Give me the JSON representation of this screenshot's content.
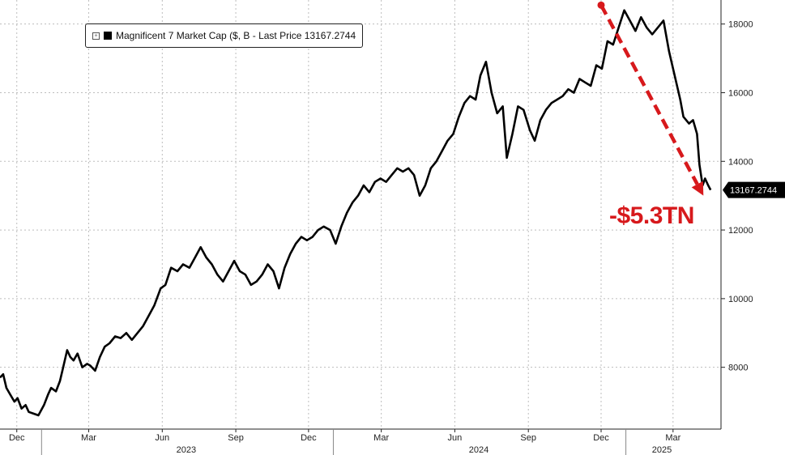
{
  "legend": {
    "toggle": "+",
    "label": "Magnificent 7 Market Cap ($, B - Last Price 13167.2744"
  },
  "annotation": {
    "text": "-$5.3TN",
    "color": "#d7191c"
  },
  "last_price_label": "13167.2744",
  "chart_data": {
    "type": "line",
    "title": "",
    "xlabel": "",
    "ylabel": "",
    "ylim": [
      6200,
      18700
    ],
    "y_ticks": [
      8000,
      10000,
      12000,
      14000,
      16000,
      18000
    ],
    "grid": true,
    "legend_position": "top-left",
    "month_ticks": [
      {
        "label": "Dec",
        "date": "2022-12-01"
      },
      {
        "label": "Mar",
        "date": "2023-03-01"
      },
      {
        "label": "Jun",
        "date": "2023-06-01"
      },
      {
        "label": "Sep",
        "date": "2023-09-01"
      },
      {
        "label": "Dec",
        "date": "2023-12-01"
      },
      {
        "label": "Mar",
        "date": "2024-03-01"
      },
      {
        "label": "Jun",
        "date": "2024-06-01"
      },
      {
        "label": "Sep",
        "date": "2024-09-01"
      },
      {
        "label": "Dec",
        "date": "2024-12-01"
      },
      {
        "label": "Mar",
        "date": "2025-03-01"
      }
    ],
    "year_labels": [
      {
        "label": "2023",
        "date": "2023-07-01"
      },
      {
        "label": "2024",
        "date": "2024-07-01"
      },
      {
        "label": "2025",
        "date": "2025-02-15"
      }
    ],
    "year_dividers": [
      "2023-01-01",
      "2024-01-01",
      "2025-01-01"
    ],
    "x_range": [
      "2022-11-10",
      "2025-04-30"
    ],
    "series": [
      {
        "name": "Magnificent 7 Market Cap ($, B - Last Price 13167.2744",
        "color": "#000000",
        "last_value": 13167.2744,
        "points": [
          [
            "2022-11-10",
            7700
          ],
          [
            "2022-11-14",
            7800
          ],
          [
            "2022-11-18",
            7400
          ],
          [
            "2022-11-23",
            7200
          ],
          [
            "2022-11-28",
            7000
          ],
          [
            "2022-12-02",
            7100
          ],
          [
            "2022-12-07",
            6800
          ],
          [
            "2022-12-12",
            6900
          ],
          [
            "2022-12-16",
            6700
          ],
          [
            "2022-12-22",
            6650
          ],
          [
            "2022-12-28",
            6600
          ],
          [
            "2023-01-04",
            6900
          ],
          [
            "2023-01-09",
            7200
          ],
          [
            "2023-01-13",
            7400
          ],
          [
            "2023-01-19",
            7300
          ],
          [
            "2023-01-24",
            7600
          ],
          [
            "2023-01-27",
            7900
          ],
          [
            "2023-02-02",
            8500
          ],
          [
            "2023-02-06",
            8300
          ],
          [
            "2023-02-10",
            8200
          ],
          [
            "2023-02-15",
            8400
          ],
          [
            "2023-02-21",
            8000
          ],
          [
            "2023-02-27",
            8100
          ],
          [
            "2023-03-03",
            8050
          ],
          [
            "2023-03-09",
            7900
          ],
          [
            "2023-03-15",
            8300
          ],
          [
            "2023-03-21",
            8600
          ],
          [
            "2023-03-27",
            8700
          ],
          [
            "2023-04-03",
            8900
          ],
          [
            "2023-04-10",
            8850
          ],
          [
            "2023-04-17",
            9000
          ],
          [
            "2023-04-24",
            8800
          ],
          [
            "2023-05-01",
            9000
          ],
          [
            "2023-05-08",
            9200
          ],
          [
            "2023-05-15",
            9500
          ],
          [
            "2023-05-22",
            9800
          ],
          [
            "2023-05-30",
            10300
          ],
          [
            "2023-06-05",
            10400
          ],
          [
            "2023-06-12",
            10900
          ],
          [
            "2023-06-20",
            10800
          ],
          [
            "2023-06-27",
            11000
          ],
          [
            "2023-07-05",
            10900
          ],
          [
            "2023-07-12",
            11200
          ],
          [
            "2023-07-19",
            11500
          ],
          [
            "2023-07-26",
            11200
          ],
          [
            "2023-08-02",
            11000
          ],
          [
            "2023-08-09",
            10700
          ],
          [
            "2023-08-16",
            10500
          ],
          [
            "2023-08-23",
            10800
          ],
          [
            "2023-08-30",
            11100
          ],
          [
            "2023-09-06",
            10800
          ],
          [
            "2023-09-13",
            10700
          ],
          [
            "2023-09-20",
            10400
          ],
          [
            "2023-09-27",
            10500
          ],
          [
            "2023-10-04",
            10700
          ],
          [
            "2023-10-11",
            11000
          ],
          [
            "2023-10-18",
            10800
          ],
          [
            "2023-10-25",
            10300
          ],
          [
            "2023-11-01",
            10900
          ],
          [
            "2023-11-08",
            11300
          ],
          [
            "2023-11-15",
            11600
          ],
          [
            "2023-11-22",
            11800
          ],
          [
            "2023-11-29",
            11700
          ],
          [
            "2023-12-06",
            11800
          ],
          [
            "2023-12-13",
            12000
          ],
          [
            "2023-12-20",
            12100
          ],
          [
            "2023-12-28",
            12000
          ],
          [
            "2024-01-04",
            11600
          ],
          [
            "2024-01-11",
            12100
          ],
          [
            "2024-01-18",
            12500
          ],
          [
            "2024-01-25",
            12800
          ],
          [
            "2024-02-01",
            13000
          ],
          [
            "2024-02-08",
            13300
          ],
          [
            "2024-02-15",
            13100
          ],
          [
            "2024-02-22",
            13400
          ],
          [
            "2024-02-29",
            13500
          ],
          [
            "2024-03-07",
            13400
          ],
          [
            "2024-03-14",
            13600
          ],
          [
            "2024-03-21",
            13800
          ],
          [
            "2024-03-28",
            13700
          ],
          [
            "2024-04-04",
            13800
          ],
          [
            "2024-04-11",
            13600
          ],
          [
            "2024-04-18",
            13000
          ],
          [
            "2024-04-25",
            13300
          ],
          [
            "2024-05-02",
            13800
          ],
          [
            "2024-05-09",
            14000
          ],
          [
            "2024-05-16",
            14300
          ],
          [
            "2024-05-23",
            14600
          ],
          [
            "2024-05-30",
            14800
          ],
          [
            "2024-06-06",
            15300
          ],
          [
            "2024-06-13",
            15700
          ],
          [
            "2024-06-20",
            15900
          ],
          [
            "2024-06-27",
            15800
          ],
          [
            "2024-07-03",
            16500
          ],
          [
            "2024-07-10",
            16900
          ],
          [
            "2024-07-17",
            16000
          ],
          [
            "2024-07-24",
            15400
          ],
          [
            "2024-07-31",
            15600
          ],
          [
            "2024-08-05",
            14100
          ],
          [
            "2024-08-12",
            14800
          ],
          [
            "2024-08-19",
            15600
          ],
          [
            "2024-08-26",
            15500
          ],
          [
            "2024-09-03",
            14900
          ],
          [
            "2024-09-09",
            14600
          ],
          [
            "2024-09-16",
            15200
          ],
          [
            "2024-09-23",
            15500
          ],
          [
            "2024-09-30",
            15700
          ],
          [
            "2024-10-07",
            15800
          ],
          [
            "2024-10-14",
            15900
          ],
          [
            "2024-10-21",
            16100
          ],
          [
            "2024-10-28",
            16000
          ],
          [
            "2024-11-04",
            16400
          ],
          [
            "2024-11-11",
            16300
          ],
          [
            "2024-11-18",
            16200
          ],
          [
            "2024-11-25",
            16800
          ],
          [
            "2024-12-02",
            16700
          ],
          [
            "2024-12-09",
            17500
          ],
          [
            "2024-12-16",
            17400
          ],
          [
            "2024-12-23",
            17900
          ],
          [
            "2024-12-30",
            18400
          ],
          [
            "2025-01-06",
            18100
          ],
          [
            "2025-01-13",
            17800
          ],
          [
            "2025-01-20",
            18200
          ],
          [
            "2025-01-27",
            17900
          ],
          [
            "2025-02-03",
            17700
          ],
          [
            "2025-02-10",
            17900
          ],
          [
            "2025-02-17",
            18100
          ],
          [
            "2025-02-24",
            17200
          ],
          [
            "2025-03-03",
            16500
          ],
          [
            "2025-03-10",
            15800
          ],
          [
            "2025-03-14",
            15300
          ],
          [
            "2025-03-21",
            15100
          ],
          [
            "2025-03-26",
            15200
          ],
          [
            "2025-03-31",
            14800
          ],
          [
            "2025-04-03",
            13900
          ],
          [
            "2025-04-07",
            13300
          ],
          [
            "2025-04-10",
            13500
          ],
          [
            "2025-04-14",
            13300
          ],
          [
            "2025-04-17",
            13167.2744
          ]
        ]
      }
    ],
    "arrow": {
      "from": [
        "2024-12-01",
        18550
      ],
      "to": [
        "2025-04-08",
        13000
      ],
      "color": "#d7191c"
    }
  }
}
